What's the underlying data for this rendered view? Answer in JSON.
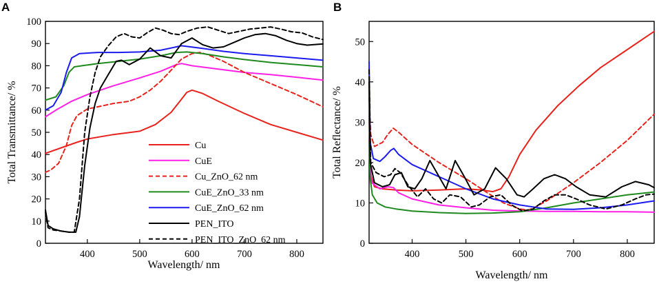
{
  "chart_data": [
    {
      "type": "line",
      "panel": "A",
      "xlabel": "Wavelength/ nm",
      "ylabel": "Total Transmittance/ %",
      "xlim": [
        320,
        850
      ],
      "ylim": [
        0,
        100
      ],
      "xticks": [
        400,
        500,
        600,
        700,
        800
      ],
      "yticks": [
        0,
        10,
        20,
        30,
        40,
        50,
        60,
        70,
        80,
        90,
        100
      ],
      "legend_position": "bottom-right",
      "series": [
        {
          "name": "Cu",
          "color": "#e8221b",
          "dash": "solid",
          "x": [
            320,
            350,
            380,
            400,
            450,
            500,
            530,
            560,
            580,
            590,
            600,
            620,
            650,
            700,
            750,
            800,
            850
          ],
          "y": [
            40.5,
            43,
            45.5,
            47,
            49,
            50.5,
            53.5,
            59,
            65,
            68,
            69,
            67.5,
            64,
            58.5,
            53.5,
            50,
            46.5
          ]
        },
        {
          "name": "CuE",
          "color": "#ff1fe5",
          "dash": "solid",
          "x": [
            320,
            340,
            370,
            400,
            450,
            500,
            540,
            570,
            580,
            600,
            650,
            700,
            750,
            800,
            850
          ],
          "y": [
            57,
            60,
            64,
            67,
            71,
            74.5,
            77.5,
            80.5,
            81,
            80,
            78.5,
            77,
            76,
            74.8,
            73.5
          ]
        },
        {
          "name": "Cu_ZnO_62 nm",
          "color": "#e8221b",
          "dash": "dashed",
          "x": [
            320,
            330,
            345,
            360,
            370,
            380,
            400,
            430,
            450,
            480,
            500,
            520,
            540,
            560,
            580,
            600,
            615,
            630,
            660,
            700,
            750,
            800,
            850
          ],
          "y": [
            32,
            33,
            36,
            44,
            53,
            57.5,
            60.5,
            62,
            63,
            64,
            66,
            69,
            73,
            78,
            83,
            85.5,
            86,
            85,
            82,
            77,
            72,
            67,
            61.5
          ]
        },
        {
          "name": "CuE_ZnO_33 nm",
          "color": "#1e8a1e",
          "dash": "solid",
          "x": [
            320,
            340,
            355,
            365,
            375,
            390,
            420,
            460,
            500,
            540,
            570,
            590,
            620,
            660,
            700,
            750,
            800,
            850
          ],
          "y": [
            64.5,
            66,
            71,
            77,
            79.5,
            80,
            81,
            82,
            83,
            84.5,
            86,
            86.2,
            85.5,
            84,
            82.8,
            81.5,
            80.5,
            79.5
          ]
        },
        {
          "name": "CuE_ZnO_62 nm",
          "color": "#1b1bf0",
          "dash": "solid",
          "x": [
            320,
            335,
            350,
            360,
            370,
            385,
            420,
            460,
            500,
            540,
            570,
            580,
            620,
            660,
            700,
            750,
            800,
            850
          ],
          "y": [
            60,
            62,
            68,
            77,
            83.5,
            85.5,
            86,
            86,
            86.2,
            87,
            88.5,
            89,
            87.8,
            86.5,
            85.5,
            84.5,
            83.5,
            82.5
          ]
        },
        {
          "name": "PEN_ITO",
          "color": "#000000",
          "dash": "solid",
          "x": [
            320,
            325,
            335,
            350,
            365,
            378,
            385,
            395,
            405,
            415,
            425,
            440,
            455,
            465,
            480,
            500,
            520,
            540,
            560,
            580,
            600,
            620,
            640,
            660,
            680,
            700,
            720,
            740,
            760,
            780,
            800,
            820,
            850
          ],
          "y": [
            15,
            8,
            6.5,
            5.5,
            5,
            5,
            12,
            35,
            52,
            63,
            70,
            76,
            82,
            82.5,
            80.5,
            83,
            88,
            84.5,
            83.5,
            90,
            92.5,
            89.5,
            88,
            88.5,
            90.5,
            92.5,
            94,
            94.5,
            93.5,
            91.5,
            90,
            89.3,
            89.8
          ]
        },
        {
          "name": "PEN_ITO_ZnO_62 nm",
          "color": "#000000",
          "dash": "dashed",
          "x": [
            320,
            325,
            335,
            350,
            365,
            375,
            385,
            395,
            405,
            415,
            425,
            440,
            455,
            470,
            485,
            500,
            515,
            530,
            545,
            560,
            575,
            590,
            610,
            630,
            650,
            670,
            690,
            710,
            730,
            750,
            770,
            790,
            810,
            830,
            850
          ],
          "y": [
            14,
            7,
            6,
            5.5,
            5,
            5,
            20,
            50,
            66,
            77,
            84,
            89,
            93,
            94.5,
            93,
            92.5,
            95,
            97,
            96,
            94.5,
            94,
            95.5,
            97,
            97.5,
            96,
            94.5,
            95.5,
            96.5,
            97,
            97.5,
            96.5,
            95.3,
            94.8,
            93,
            91.8
          ]
        }
      ]
    },
    {
      "type": "line",
      "panel": "B",
      "xlabel": "Wavelength/ nm",
      "ylabel": "Total Reflectance/ %",
      "xlim": [
        320,
        850
      ],
      "ylim": [
        0,
        55
      ],
      "xticks": [
        400,
        500,
        600,
        700,
        800
      ],
      "yticks": [
        0,
        10,
        20,
        30,
        40,
        50
      ],
      "series": [
        {
          "name": "Cu",
          "color": "#e8221b",
          "dash": "solid",
          "x": [
            320,
            323,
            330,
            345,
            370,
            400,
            450,
            500,
            530,
            550,
            565,
            580,
            600,
            630,
            670,
            710,
            750,
            800,
            850
          ],
          "y": [
            30,
            17,
            14,
            13.5,
            13.2,
            13,
            13.2,
            13.5,
            13.2,
            12.8,
            13.5,
            16.5,
            22,
            28,
            34,
            39,
            43.5,
            48,
            52.5
          ]
        },
        {
          "name": "CuE",
          "color": "#ff1fe5",
          "dash": "solid",
          "x": [
            320,
            325,
            340,
            355,
            365,
            375,
            400,
            450,
            500,
            550,
            600,
            650,
            700,
            750,
            800,
            850
          ],
          "y": [
            22,
            15,
            13.5,
            14,
            13.8,
            12.5,
            11,
            9.5,
            8.8,
            8.2,
            8,
            7.9,
            7.9,
            7.8,
            7.8,
            7.7
          ]
        },
        {
          "name": "Cu_ZnO_62 nm",
          "color": "#e8221b",
          "dash": "dashed",
          "x": [
            320,
            323,
            330,
            345,
            355,
            365,
            375,
            400,
            450,
            500,
            540,
            570,
            600,
            615,
            625,
            650,
            700,
            750,
            800,
            850
          ],
          "y": [
            36,
            27,
            24,
            25,
            27,
            28.5,
            27.5,
            24.5,
            20,
            16,
            12.5,
            10,
            8.5,
            8.2,
            8.7,
            10.5,
            15,
            20,
            25.5,
            32
          ]
        },
        {
          "name": "CuE_ZnO_33 nm",
          "color": "#1e8a1e",
          "dash": "solid",
          "x": [
            320,
            322,
            326,
            335,
            350,
            370,
            400,
            450,
            500,
            550,
            600,
            650,
            700,
            750,
            800,
            850
          ],
          "y": [
            25,
            16,
            12,
            10,
            9,
            8.5,
            8,
            7.6,
            7.4,
            7.5,
            7.8,
            8.8,
            10,
            11,
            12,
            12.7
          ]
        },
        {
          "name": "CuE_ZnO_62 nm",
          "color": "#1b1bf0",
          "dash": "solid",
          "x": [
            320,
            322,
            328,
            340,
            350,
            360,
            366,
            375,
            400,
            450,
            500,
            550,
            600,
            650,
            700,
            750,
            800,
            850
          ],
          "y": [
            45,
            25,
            21,
            20.3,
            21.5,
            23,
            23.5,
            22,
            19.5,
            16.5,
            13.5,
            11,
            9.5,
            8.5,
            8.4,
            8.8,
            9.5,
            10.5
          ]
        },
        {
          "name": "PEN_ITO",
          "color": "#000000",
          "dash": "solid",
          "x": [
            320,
            322,
            330,
            345,
            358,
            368,
            380,
            392,
            405,
            418,
            433,
            448,
            463,
            480,
            497,
            515,
            535,
            555,
            575,
            595,
            608,
            625,
            645,
            665,
            685,
            705,
            730,
            760,
            790,
            815,
            840,
            850
          ],
          "y": [
            40,
            20,
            15,
            14,
            14.5,
            17,
            17.5,
            14,
            13.5,
            16,
            20.5,
            17,
            13.5,
            20.5,
            16.5,
            12,
            13.5,
            18.7,
            16,
            12,
            11.5,
            13.5,
            16,
            17,
            16,
            14,
            12,
            11.5,
            14,
            15.3,
            14.5,
            13.8
          ]
        },
        {
          "name": "PEN_ITO_ZnO_62 nm",
          "color": "#000000",
          "dash": "dashed",
          "x": [
            320,
            323,
            333,
            348,
            360,
            368,
            378,
            392,
            410,
            425,
            440,
            455,
            470,
            490,
            510,
            525,
            545,
            565,
            585,
            605,
            625,
            645,
            665,
            685,
            705,
            730,
            760,
            790,
            815,
            835,
            850
          ],
          "y": [
            43,
            20,
            17.5,
            16.5,
            17,
            18.5,
            17.5,
            14.5,
            11.5,
            13.5,
            11,
            10,
            12,
            11.5,
            9,
            9.5,
            11.5,
            12,
            9.5,
            8,
            8.5,
            10.5,
            12,
            12,
            11,
            9.5,
            8.5,
            9.5,
            11,
            12,
            12.2
          ]
        }
      ]
    }
  ]
}
